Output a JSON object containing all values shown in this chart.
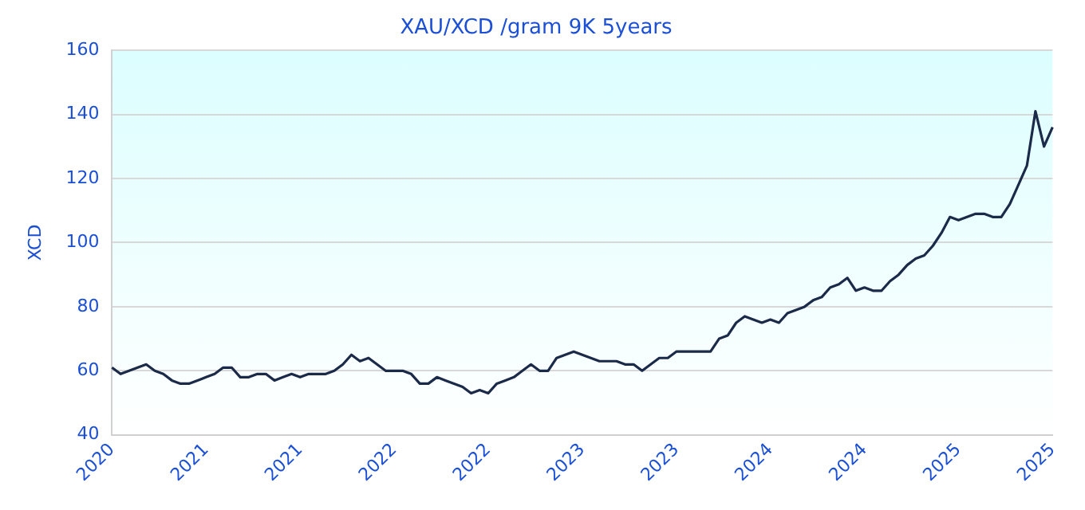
{
  "chart_data": {
    "type": "line",
    "title": "XAU/XCD /gram 9K 5years",
    "ylabel": "XCD",
    "categories": [
      "2020",
      null,
      null,
      null,
      null,
      null,
      null,
      null,
      null,
      null,
      null,
      "2021",
      null,
      null,
      null,
      null,
      null,
      null,
      null,
      null,
      null,
      null,
      "2021",
      null,
      null,
      null,
      null,
      null,
      null,
      null,
      null,
      null,
      null,
      "2022",
      null,
      null,
      null,
      null,
      null,
      null,
      null,
      null,
      null,
      null,
      "2022",
      null,
      null,
      null,
      null,
      null,
      null,
      null,
      null,
      null,
      null,
      "2023",
      null,
      null,
      null,
      null,
      null,
      null,
      null,
      null,
      null,
      null,
      "2023",
      null,
      null,
      null,
      null,
      null,
      null,
      null,
      null,
      null,
      null,
      "2024",
      null,
      null,
      null,
      null,
      null,
      null,
      null,
      null,
      null,
      null,
      "2024",
      null,
      null,
      null,
      null,
      null,
      null,
      null,
      null,
      null,
      null,
      "2025",
      null,
      null,
      null,
      null,
      null,
      null,
      null,
      null,
      null,
      null,
      "2025"
    ],
    "series": [
      {
        "color": "#1b2a48",
        "values": [
          61,
          59,
          60,
          61,
          62,
          60,
          59,
          57,
          56,
          56,
          57,
          58,
          59,
          61,
          61,
          58,
          58,
          59,
          59,
          57,
          58,
          59,
          58,
          59,
          59,
          59,
          60,
          62,
          65,
          63,
          64,
          62,
          60,
          60,
          60,
          59,
          56,
          56,
          58,
          57,
          56,
          55,
          53,
          54,
          53,
          56,
          57,
          58,
          60,
          62,
          60,
          60,
          64,
          65,
          66,
          65,
          64,
          63,
          63,
          63,
          62,
          62,
          60,
          62,
          64,
          64,
          66,
          66,
          66,
          66,
          66,
          70,
          71,
          75,
          77,
          76,
          75,
          76,
          75,
          78,
          79,
          80,
          82,
          83,
          86,
          87,
          89,
          85,
          86,
          85,
          85,
          88,
          90,
          93,
          95,
          96,
          99,
          103,
          108,
          107,
          108,
          109,
          109,
          108,
          108,
          112,
          118,
          124,
          141,
          130,
          136
        ]
      }
    ],
    "ylim": [
      40,
      160
    ],
    "yticks": [
      40,
      60,
      80,
      100,
      120,
      140,
      160
    ],
    "grid": "y",
    "legend": false,
    "marker": "none",
    "line_style": "solid"
  }
}
